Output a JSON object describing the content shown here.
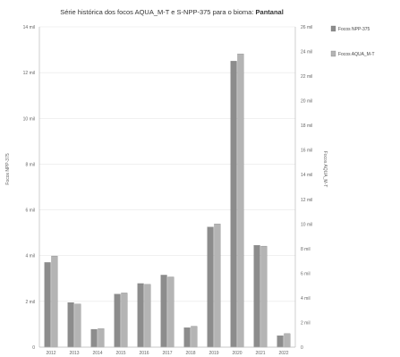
{
  "chart_data": {
    "type": "bar",
    "title_prefix": "Série histórica dos focos AQUA_M-T e S-NPP-375 para o bioma: ",
    "title_bold": "Pantanal",
    "categories": [
      "2012",
      "2013",
      "2014",
      "2015",
      "2016",
      "2017",
      "2018",
      "2019",
      "2020",
      "2021",
      "2022"
    ],
    "series": [
      {
        "name": "Focos NPP-375",
        "axis": "left",
        "color": "#8c8c8c",
        "values": [
          3700,
          1950,
          780,
          2320,
          2780,
          3150,
          850,
          5250,
          12500,
          4450,
          500
        ]
      },
      {
        "name": "Focos AQUA_M-T",
        "axis": "right",
        "color": "#b4b4b4",
        "values": [
          7400,
          3500,
          1500,
          4400,
          5100,
          5700,
          1700,
          10000,
          23800,
          8200,
          1100
        ]
      }
    ],
    "y_left": {
      "label": "Focos NPP-375",
      "ylim": [
        0,
        14000
      ],
      "ticks": [
        "0",
        "2 mil",
        "4 mil",
        "6 mil",
        "8 mil",
        "10 mil",
        "12 mil",
        "14 mil"
      ]
    },
    "y_right": {
      "label": "Focos AQUA_M-T",
      "ylim": [
        0,
        26000
      ],
      "ticks": [
        "0",
        "2 mil",
        "4 mil",
        "6 mil",
        "8 mil",
        "10 mil",
        "12 mil",
        "14 mil",
        "16 mil",
        "18 mil",
        "20 mil",
        "22 mil",
        "24 mil",
        "26 mil"
      ]
    },
    "legend_position": "top-right",
    "grid": true
  }
}
